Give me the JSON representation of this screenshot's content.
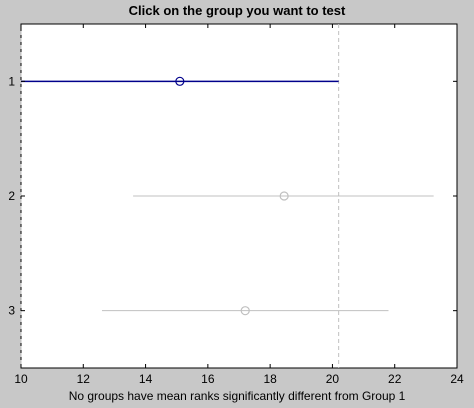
{
  "chart_data": {
    "type": "scatter",
    "title": "Click on the group you want to test",
    "xlabel": "No groups have mean ranks significantly different from Group 1",
    "ylabel": "",
    "xlim": [
      10,
      24
    ],
    "xticks": [
      "10",
      "12",
      "14",
      "16",
      "18",
      "20",
      "22",
      "24"
    ],
    "xtick_values": [
      10,
      12,
      14,
      16,
      18,
      20,
      22,
      24
    ],
    "yticks": [
      "1",
      "2",
      "3"
    ],
    "grid": false,
    "reference_lines": [
      {
        "name": "lower bound of Group 1 interval",
        "x": 10.0
      },
      {
        "name": "upper bound of Group 1 interval",
        "x": 20.2
      }
    ],
    "groups": [
      {
        "label": "1",
        "estimate": 15.1,
        "lower": 10.0,
        "upper": 20.2,
        "selected": true
      },
      {
        "label": "2",
        "estimate": 18.45,
        "lower": 13.6,
        "upper": 23.25,
        "selected": false
      },
      {
        "label": "3",
        "estimate": 17.2,
        "lower": 12.6,
        "upper": 21.8,
        "selected": false
      }
    ]
  },
  "colors": {
    "figure_background": "#c8c8c8",
    "axes_background": "#ffffff",
    "selected_group": "#00008b",
    "other_groups": "#c0c0c0",
    "reference_line": "#c0c0c0",
    "text": "#000000"
  }
}
